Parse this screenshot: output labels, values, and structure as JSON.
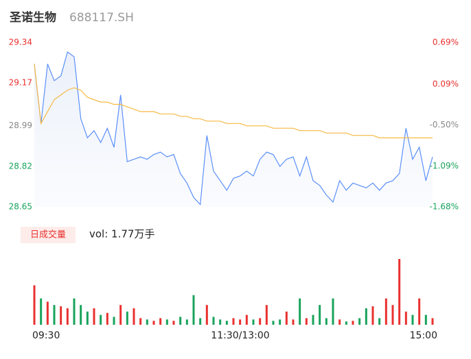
{
  "chart_data": [
    {
      "type": "line",
      "title": "圣诺生物",
      "subtitle": "688117.SH",
      "ylim": [
        28.65,
        29.34
      ],
      "yticks": [
        29.34,
        29.17,
        28.99,
        28.82,
        28.65
      ],
      "ytick_colors": [
        "#e8312f",
        "#e8312f",
        "#888888",
        "#18a35b",
        "#18a35b"
      ],
      "y2lim": [
        -1.68,
        0.69
      ],
      "y2ticks": [
        {
          "value": 0.69,
          "label": "0.69%"
        },
        {
          "value": 0.09,
          "label": "0.09%"
        },
        {
          "value": -0.5,
          "label": "-0.50%"
        },
        {
          "value": -1.09,
          "label": "-1.09%"
        },
        {
          "value": -1.68,
          "label": "-1.68%"
        }
      ],
      "y2tick_colors": [
        "#e8312f",
        "#e8312f",
        "#888888",
        "#18a35b",
        "#18a35b"
      ],
      "series": [
        {
          "color": "#5b8ff9",
          "area": true,
          "values": [
            29.25,
            29.0,
            29.25,
            29.18,
            29.2,
            29.3,
            29.28,
            29.02,
            28.94,
            28.97,
            28.92,
            28.98,
            28.9,
            29.12,
            28.84,
            28.85,
            28.86,
            28.85,
            28.87,
            28.88,
            28.86,
            28.87,
            28.79,
            28.75,
            28.69,
            28.66,
            28.95,
            28.8,
            28.76,
            28.72,
            28.77,
            28.78,
            28.8,
            28.78,
            28.85,
            28.88,
            28.87,
            28.82,
            28.85,
            28.86,
            28.78,
            28.86,
            28.76,
            28.74,
            28.7,
            28.67,
            28.76,
            28.72,
            28.75,
            28.74,
            28.73,
            28.75,
            28.72,
            28.75,
            28.76,
            28.79,
            28.98,
            28.85,
            28.9,
            28.76,
            28.86
          ]
        },
        {
          "color": "#f5b942",
          "area": false,
          "values": [
            29.25,
            29.0,
            29.05,
            29.1,
            29.12,
            29.14,
            29.15,
            29.14,
            29.11,
            29.1,
            29.09,
            29.09,
            29.08,
            29.08,
            29.07,
            29.06,
            29.05,
            29.05,
            29.05,
            29.04,
            29.04,
            29.04,
            29.03,
            29.03,
            29.02,
            29.02,
            29.01,
            29.01,
            29.01,
            29.0,
            29.0,
            29.0,
            28.99,
            28.99,
            28.99,
            28.99,
            28.98,
            28.98,
            28.98,
            28.98,
            28.97,
            28.97,
            28.97,
            28.97,
            28.96,
            28.96,
            28.96,
            28.96,
            28.95,
            28.95,
            28.95,
            28.95,
            28.94,
            28.94,
            28.94,
            28.94,
            28.94,
            28.94,
            28.94,
            28.94,
            28.94
          ]
        }
      ]
    },
    {
      "type": "bar",
      "title": "日成交量",
      "annotation": "vol: 1.77万手",
      "categories": [
        "09:30",
        null,
        null,
        null,
        null,
        null,
        null,
        null,
        null,
        null,
        null,
        null,
        null,
        null,
        null,
        null,
        null,
        null,
        null,
        null,
        null,
        null,
        null,
        null,
        null,
        null,
        null,
        null,
        null,
        null,
        "11:30/13:00",
        null,
        null,
        null,
        null,
        null,
        null,
        null,
        null,
        null,
        null,
        null,
        null,
        null,
        null,
        null,
        null,
        null,
        null,
        null,
        null,
        null,
        null,
        null,
        null,
        null,
        null,
        null,
        null,
        null,
        "15:00"
      ],
      "values": [
        60,
        40,
        35,
        30,
        28,
        25,
        40,
        30,
        20,
        25,
        15,
        18,
        12,
        30,
        20,
        25,
        10,
        8,
        6,
        10,
        8,
        6,
        12,
        8,
        45,
        10,
        30,
        12,
        8,
        6,
        10,
        8,
        15,
        8,
        10,
        30,
        6,
        8,
        20,
        8,
        40,
        10,
        15,
        30,
        10,
        40,
        8,
        5,
        6,
        10,
        25,
        28,
        10,
        40,
        30,
        100,
        20,
        15,
        40,
        15,
        10
      ],
      "ylim": [
        0,
        100
      ],
      "up_color": "#e8312f",
      "down_color": "#18a35b"
    }
  ]
}
